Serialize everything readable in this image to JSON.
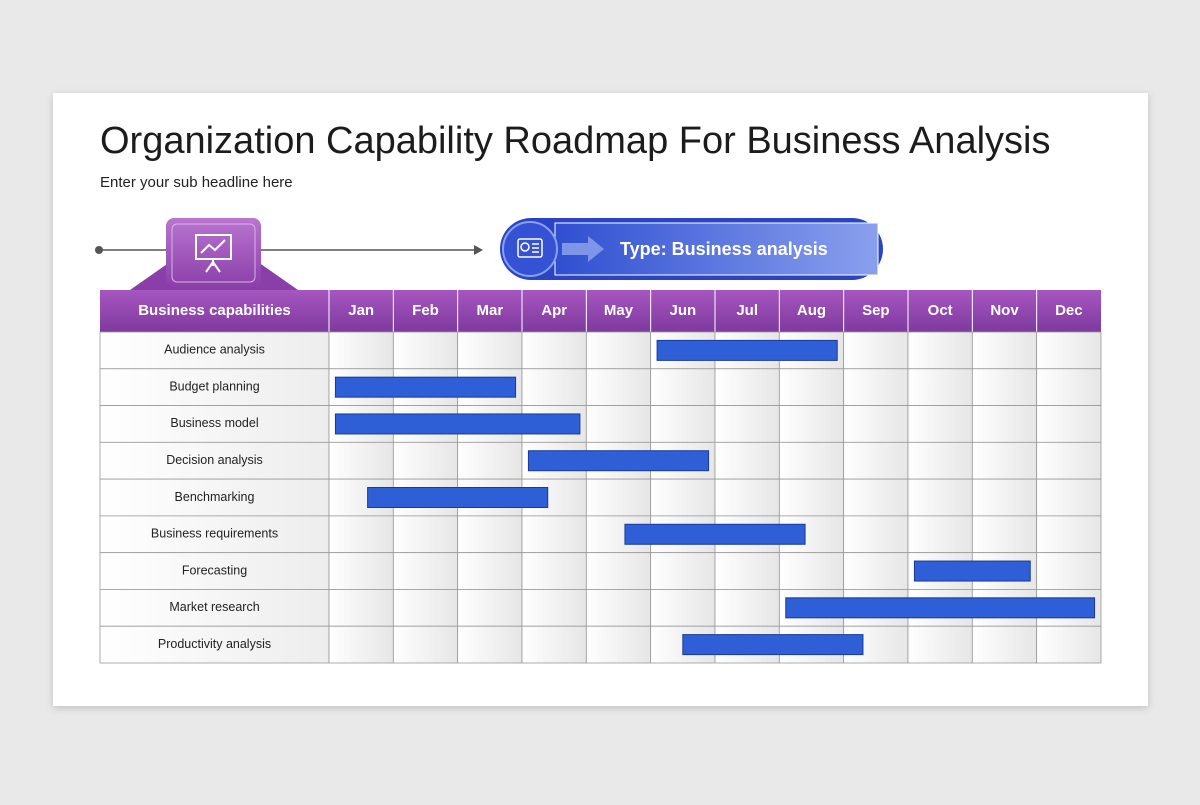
{
  "title": "Organization Capability Roadmap For Business Analysis",
  "subtitle": "Enter your sub headline here",
  "badge": "Type: Business analysis",
  "chart_data": {
    "type": "gantt",
    "category_header": "Business capabilities",
    "months": [
      "Jan",
      "Feb",
      "Mar",
      "Apr",
      "May",
      "Jun",
      "Jul",
      "Aug",
      "Sep",
      "Oct",
      "Nov",
      "Dec"
    ],
    "categories": [
      "Audience analysis",
      "Budget planning",
      "Business model",
      "Decision analysis",
      "Benchmarking",
      "Business requirements",
      "Forecasting",
      "Market research",
      "Productivity analysis"
    ],
    "start": [
      5.1,
      0.1,
      0.1,
      3.1,
      0.6,
      4.6,
      9.1,
      7.1,
      5.5
    ],
    "end": [
      7.9,
      2.9,
      3.9,
      5.9,
      3.4,
      7.4,
      10.9,
      11.9,
      8.3
    ],
    "xlim": [
      0,
      12
    ],
    "color": "#2f5fd6"
  }
}
